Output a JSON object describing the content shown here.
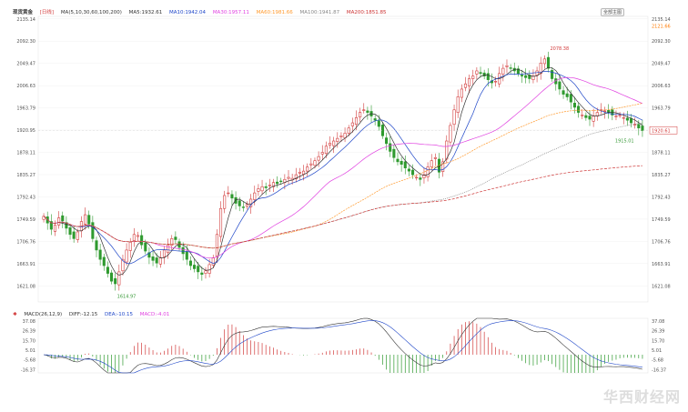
{
  "chart_data": [
    {
      "type": "candlestick",
      "title": "现货黄金",
      "period": "[日线]",
      "ylim": [
        1590,
        2140
      ],
      "y_ticks": [
        "2135.14",
        "2092.30",
        "2049.47",
        "2006.63",
        "1963.79",
        "1920.95",
        "1878.11",
        "1835.27",
        "1792.43",
        "1749.59",
        "1706.76",
        "1663.91",
        "1621.08"
      ],
      "ma_legend": {
        "ma_label": "MA(5,10,30,60,100,200)",
        "items": [
          {
            "label": "MA5:1932.61",
            "color": "#333333"
          },
          {
            "label": "MA10:1942.04",
            "color": "#1e46c8"
          },
          {
            "label": "MA30:1957.11",
            "color": "#e040e0"
          },
          {
            "label": "MA60:1981.66",
            "color": "#ff9a2e"
          },
          {
            "label": "MA100:1941.87",
            "color": "#888888"
          },
          {
            "label": "MA200:1851.85",
            "color": "#cc3333"
          }
        ]
      },
      "annotations": [
        {
          "text": "2078.38",
          "kind": "high",
          "color": "#d23b3b"
        },
        {
          "text": "1614.97",
          "kind": "low",
          "color": "#3a9a3a"
        },
        {
          "text": "1915.01",
          "kind": "last-low",
          "color": "#3a9a3a"
        },
        {
          "text": "2121.66",
          "kind": "axis-upper",
          "color": "#ff7a00"
        },
        {
          "text": "1920.61",
          "kind": "current-price",
          "color": "#d23b3b"
        }
      ],
      "series": [
        {
          "name": "close",
          "values": [
            1755,
            1742,
            1730,
            1738,
            1752,
            1746,
            1732,
            1720,
            1712,
            1725,
            1745,
            1758,
            1740,
            1712,
            1690,
            1672,
            1660,
            1645,
            1630,
            1625,
            1648,
            1672,
            1690,
            1705,
            1720,
            1718,
            1700,
            1688,
            1676,
            1670,
            1665,
            1675,
            1690,
            1700,
            1712,
            1710,
            1695,
            1683,
            1672,
            1660,
            1654,
            1648,
            1643,
            1650,
            1662,
            1675,
            1720,
            1770,
            1795,
            1800,
            1790,
            1780,
            1775,
            1772,
            1778,
            1788,
            1800,
            1808,
            1812,
            1810,
            1815,
            1820,
            1818,
            1822,
            1826,
            1830,
            1828,
            1835,
            1840,
            1842,
            1850,
            1856,
            1862,
            1870,
            1878,
            1890,
            1896,
            1900,
            1905,
            1910,
            1915,
            1925,
            1935,
            1945,
            1955,
            1960,
            1955,
            1948,
            1940,
            1928,
            1910,
            1895,
            1880,
            1868,
            1860,
            1855,
            1848,
            1842,
            1835,
            1830,
            1826,
            1835,
            1850,
            1862,
            1868,
            1840,
            1860,
            1900,
            1930,
            1960,
            1985,
            2000,
            2010,
            2020,
            2025,
            2035,
            2030,
            2025,
            2018,
            2012,
            2015,
            2030,
            2040,
            2045,
            2040,
            2035,
            2030,
            2025,
            2022,
            2020,
            2025,
            2035,
            2050,
            2058,
            2040,
            2020,
            2010,
            2000,
            1990,
            1985,
            1975,
            1965,
            1955,
            1950,
            1945,
            1942,
            1948,
            1955,
            1960,
            1958,
            1955,
            1950,
            1948,
            1950,
            1945,
            1940,
            1935,
            1932,
            1925,
            1920
          ]
        }
      ]
    },
    {
      "type": "macd",
      "title": "MACD(26,12,9)",
      "legend": [
        {
          "label": "MACD(26,12,9)",
          "color": "#333333"
        },
        {
          "label": "DIFF:-12.15",
          "color": "#333333"
        },
        {
          "label": "DEA:-10.15",
          "color": "#1e46c8"
        },
        {
          "label": "MACD:-4.01",
          "color": "#e040e0"
        }
      ],
      "ylim": [
        -20,
        40
      ],
      "y_ticks": [
        "37.08",
        "26.39",
        "15.70",
        "5.01",
        "-5.68",
        "-16.37"
      ],
      "right_ticks": [
        "37.08",
        "26.39",
        "15.70",
        "5.01",
        "-5.68",
        "-16.37"
      ]
    }
  ],
  "header": {
    "pill_label": "全部主图"
  },
  "watermark": "华西财经网"
}
